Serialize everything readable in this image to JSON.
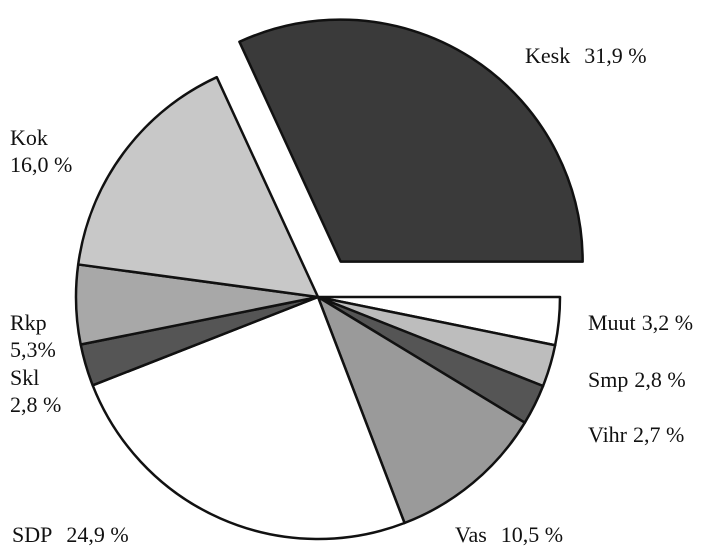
{
  "chart_data": {
    "type": "pie",
    "categories": [
      "Kesk",
      "Muut",
      "Smp",
      "Vihr",
      "Vas",
      "SDP",
      "Skl",
      "Rkp",
      "Kok"
    ],
    "values": [
      31.9,
      3.2,
      2.8,
      2.7,
      10.5,
      24.9,
      2.8,
      5.3,
      16.0
    ],
    "value_labels": [
      "31,9 %",
      "3,2 %",
      "2,8 %",
      "2,7 %",
      "10,5 %",
      "24,9 %",
      "2,8 %",
      "5,3%",
      "16,0 %"
    ],
    "colors": [
      "#3a3a3a",
      "#ffffff",
      "#bdbdbd",
      "#555555",
      "#9a9a9a",
      "#ffffff",
      "#555555",
      "#a8a8a8",
      "#c8c8c8"
    ],
    "exploded": "Kesk"
  }
}
